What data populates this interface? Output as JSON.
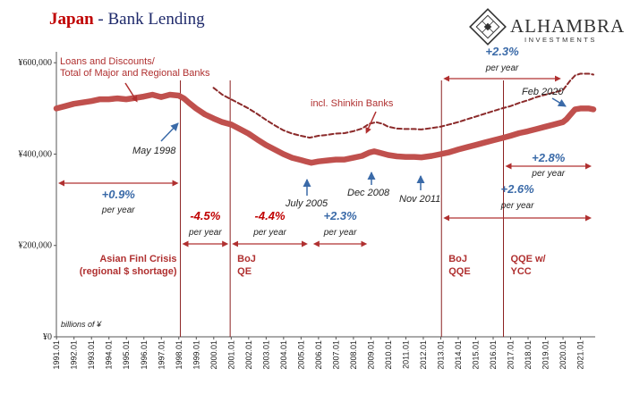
{
  "title": {
    "red": "Japan",
    "sep": " - ",
    "blue": "Bank Lending"
  },
  "logo": {
    "main": "ALHAMBRA",
    "sub": "INVESTMENTS"
  },
  "chart_data": {
    "type": "line",
    "units_note": "billions of ¥",
    "ylim": [
      0,
      620000
    ],
    "y_ticks": [
      {
        "value": 0,
        "label": "¥0"
      },
      {
        "value": 200000,
        "label": "¥200,000"
      },
      {
        "value": 400000,
        "label": "¥400,000"
      },
      {
        "value": 600000,
        "label": "¥600,000"
      }
    ],
    "x_range": [
      1991.0,
      2021.75
    ],
    "x_ticks": [
      "1991.01",
      "1992.01",
      "1993.01",
      "1994.01",
      "1995.01",
      "1996.01",
      "1997.01",
      "1998.01",
      "1999.01",
      "2000.01",
      "2001.01",
      "2002.01",
      "2003.01",
      "2004.01",
      "2005.01",
      "2006.01",
      "2007.01",
      "2008.01",
      "2009.01",
      "2010.01",
      "2011.01",
      "2012.01",
      "2013.01",
      "2014.01",
      "2015.01",
      "2016.01",
      "2017.01",
      "2018.01",
      "2019.01",
      "2020.01",
      "2021.01"
    ],
    "series": [
      {
        "name": "Loans and Discounts/ Total of Major and Regional Banks",
        "style": "solid",
        "color": "#c0504d",
        "x": [
          1991.0,
          1991.5,
          1992.0,
          1992.5,
          1993.0,
          1993.5,
          1994.0,
          1994.5,
          1995.0,
          1995.5,
          1996.0,
          1996.5,
          1997.0,
          1997.5,
          1998.0,
          1998.3,
          1998.6,
          1999.0,
          1999.5,
          2000.0,
          2000.5,
          2001.0,
          2001.5,
          2002.0,
          2002.5,
          2003.0,
          2003.5,
          2004.0,
          2004.5,
          2005.0,
          2005.3,
          2005.6,
          2006.0,
          2006.5,
          2007.0,
          2007.5,
          2008.0,
          2008.5,
          2008.9,
          2009.2,
          2009.5,
          2010.0,
          2010.5,
          2011.0,
          2011.5,
          2011.9,
          2012.5,
          2013.0,
          2013.5,
          2014.0,
          2014.5,
          2015.0,
          2015.5,
          2016.0,
          2016.5,
          2017.0,
          2017.5,
          2018.0,
          2018.5,
          2019.0,
          2019.5,
          2020.0,
          2020.2,
          2020.4,
          2020.7,
          2021.0,
          2021.5,
          2021.75
        ],
        "values": [
          500000,
          505000,
          510000,
          513000,
          516000,
          520000,
          520000,
          522000,
          520000,
          523000,
          526000,
          530000,
          525000,
          530000,
          528000,
          522000,
          512000,
          500000,
          487000,
          478000,
          470000,
          465000,
          455000,
          445000,
          432000,
          420000,
          410000,
          400000,
          392000,
          387000,
          384000,
          381000,
          384000,
          386000,
          388000,
          388000,
          392000,
          396000,
          403000,
          406000,
          403000,
          398000,
          395000,
          394000,
          394000,
          393000,
          396000,
          400000,
          404000,
          410000,
          415000,
          420000,
          425000,
          430000,
          435000,
          440000,
          446000,
          450000,
          455000,
          460000,
          465000,
          470000,
          476000,
          485000,
          498000,
          500000,
          500000,
          498000
        ]
      },
      {
        "name": "incl. Shinkin Banks",
        "style": "dashed",
        "color": "#8b2a2a",
        "x": [
          2000.0,
          2000.5,
          2001.0,
          2001.5,
          2002.0,
          2002.5,
          2003.0,
          2003.5,
          2004.0,
          2004.5,
          2005.0,
          2005.5,
          2006.0,
          2006.5,
          2007.0,
          2007.5,
          2008.0,
          2008.5,
          2008.9,
          2009.3,
          2009.7,
          2010.0,
          2010.5,
          2011.0,
          2011.5,
          2011.9,
          2012.5,
          2013.0,
          2013.5,
          2014.0,
          2014.5,
          2015.0,
          2015.5,
          2016.0,
          2016.5,
          2017.0,
          2017.5,
          2018.0,
          2018.5,
          2019.0,
          2019.5,
          2020.0,
          2020.2,
          2020.4,
          2020.7,
          2021.0,
          2021.5,
          2021.75
        ],
        "values": [
          545000,
          530000,
          520000,
          510000,
          500000,
          488000,
          475000,
          463000,
          452000,
          445000,
          440000,
          436000,
          440000,
          442000,
          445000,
          446000,
          450000,
          456000,
          466000,
          470000,
          466000,
          460000,
          456000,
          455000,
          455000,
          454000,
          457000,
          460000,
          465000,
          470000,
          476000,
          482000,
          488000,
          494000,
          500000,
          505000,
          512000,
          518000,
          525000,
          530000,
          535000,
          540000,
          550000,
          560000,
          572000,
          576000,
          576000,
          574000
        ]
      }
    ],
    "event_lines": [
      {
        "x": 1998.1,
        "label_lines": [
          "Asian Finl Crisis",
          "(regional $ shortage)"
        ]
      },
      {
        "x": 2000.95,
        "label_lines": [
          "BoJ",
          "QE"
        ]
      },
      {
        "x": 2013.05,
        "label_lines": [
          "BoJ",
          "QQE"
        ]
      },
      {
        "x": 2016.6,
        "label_lines": [
          "QQE w/",
          "YCC"
        ]
      }
    ],
    "annotations": [
      {
        "text": "Loans and Discounts/",
        "role": "series-label-1"
      },
      {
        "text": "Total of Major and Regional Banks",
        "role": "series-label-2"
      },
      {
        "text": "incl. Shinkin Banks",
        "role": "shinkin-label"
      },
      {
        "text": "May 1998",
        "role": "point-label"
      },
      {
        "text": "July 2005",
        "role": "point-label"
      },
      {
        "text": "Dec 2008",
        "role": "point-label"
      },
      {
        "text": "Nov 2011",
        "role": "point-label"
      },
      {
        "text": "Feb 2020",
        "role": "point-label"
      }
    ],
    "growth_rates": [
      {
        "rate": "+0.9%",
        "unit": "per year",
        "x_from": 1991.0,
        "x_to": 1998.1
      },
      {
        "rate": "-4.5%",
        "unit": "per year",
        "x_from": 1998.1,
        "x_to": 2000.95
      },
      {
        "rate": "-4.4%",
        "unit": "per year",
        "x_from": 2000.95,
        "x_to": 2005.5
      },
      {
        "rate": "+2.3%",
        "unit": "per year",
        "x_from": 2005.6,
        "x_to": 2008.9
      },
      {
        "rate": "+2.6%",
        "unit": "per year",
        "x_from": 2013.05,
        "x_to": 2021.75
      },
      {
        "rate": "+2.8%",
        "unit": "per year",
        "x_from": 2016.6,
        "x_to": 2021.75
      },
      {
        "rate": "+2.3%",
        "unit": "per year",
        "x_from": 2013.05,
        "x_to": 2020.0
      }
    ]
  }
}
